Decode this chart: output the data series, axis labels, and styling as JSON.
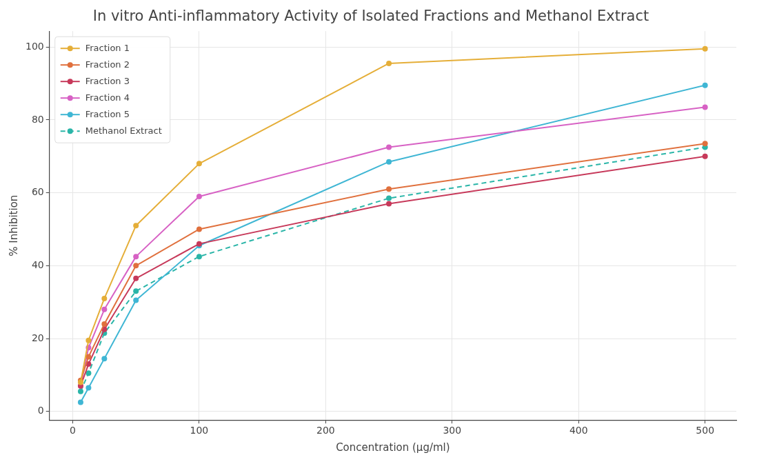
{
  "chart_data": {
    "type": "line",
    "title": "In vitro Anti-inflammatory Activity of Isolated Fractions and Methanol Extract",
    "xlabel": "Concentration (µg/ml)",
    "ylabel": "% Inhibition",
    "x": [
      6.25,
      12.5,
      25,
      50,
      100,
      250,
      500
    ],
    "series": [
      {
        "name": "Fraction 1",
        "color": "#e5ae38",
        "values": [
          8,
          19.5,
          31,
          51,
          68,
          95.5,
          99.5
        ]
      },
      {
        "name": "Fraction 2",
        "color": "#e0703d",
        "values": [
          8.5,
          15,
          24,
          40,
          50,
          61,
          73.5
        ]
      },
      {
        "name": "Fraction 3",
        "color": "#c7395a",
        "values": [
          7,
          13,
          22.5,
          36.5,
          46,
          57,
          70
        ]
      },
      {
        "name": "Fraction 4",
        "color": "#d761c4",
        "values": [
          7,
          17.5,
          28,
          42.5,
          59,
          72.5,
          83.5
        ]
      },
      {
        "name": "Fraction 5",
        "color": "#3fb6d4",
        "values": [
          2.5,
          6.5,
          14.5,
          30.5,
          45.5,
          68.5,
          89.5
        ]
      },
      {
        "name": "Methanol Extract",
        "color": "#2ab5a8",
        "line_style": "dashed",
        "values": [
          5.5,
          10.5,
          21.5,
          33,
          42.5,
          58.5,
          72.5
        ]
      }
    ],
    "xlim": [
      -18.4,
      524.7
    ],
    "xticks": [
      0,
      100,
      200,
      300,
      400,
      500
    ],
    "ylim": [
      -2.35,
      104.35
    ],
    "yticks": [
      0,
      20,
      40,
      60,
      80,
      100
    ],
    "grid": true,
    "legend": "top left",
    "marker": "circle"
  }
}
